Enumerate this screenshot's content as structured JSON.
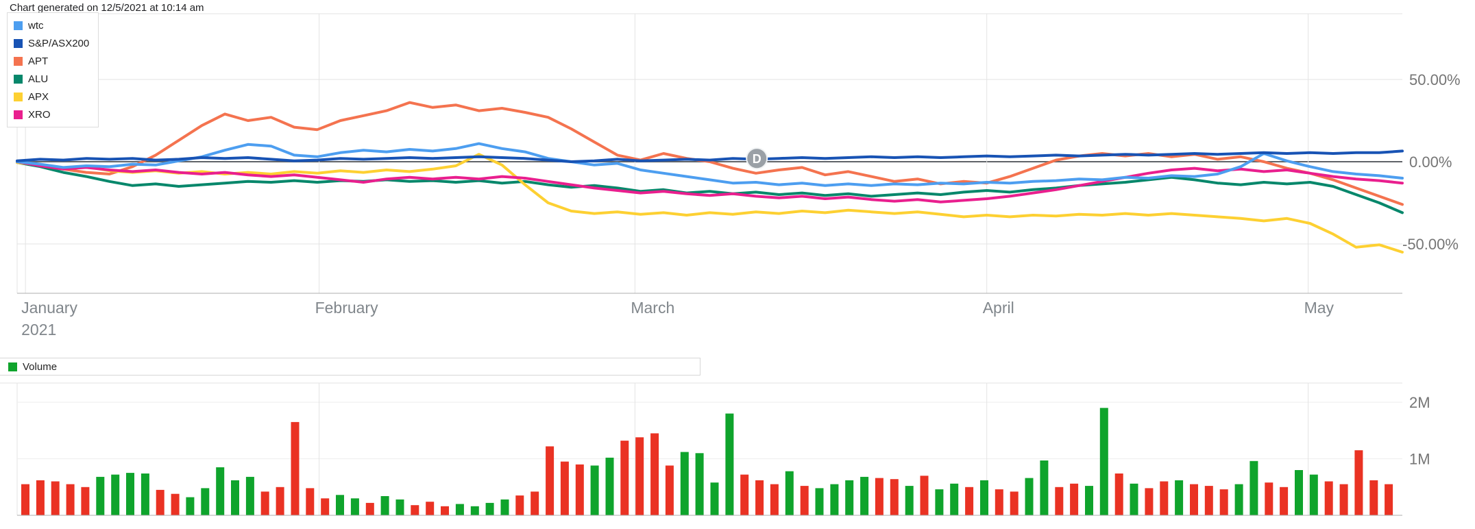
{
  "header": {
    "generated_note": "Chart generated on 12/5/2021 at 10:14 am"
  },
  "colors": {
    "grid": "#e3e3e3",
    "zero_line": "#5f6368",
    "axis_line": "#adadad",
    "tick_label": "#757575",
    "month_label": "#80868b"
  },
  "chart_data": [
    {
      "type": "line",
      "title": "",
      "ylim": [
        -80,
        90
      ],
      "yticks": [
        {
          "v": 50,
          "label": "50.00%"
        },
        {
          "v": 0,
          "label": "0.00%"
        },
        {
          "v": -50,
          "label": "-50.00%"
        }
      ],
      "x_axis": {
        "ticks": [
          {
            "f": 0.006,
            "label": "January",
            "sublabel": "2021"
          },
          {
            "f": 0.218,
            "label": "February"
          },
          {
            "f": 0.446,
            "label": "March"
          },
          {
            "f": 0.7,
            "label": "April"
          },
          {
            "f": 0.932,
            "label": "May"
          }
        ]
      },
      "marker": {
        "label": "D",
        "f": 0.534,
        "value": 2,
        "color": "#9aa0a6"
      },
      "series": [
        {
          "name": "wtc",
          "color": "#4d9ef0",
          "values": [
            0,
            -1.5,
            -3.5,
            -2.5,
            -3,
            -1.5,
            -2,
            0.5,
            3,
            7,
            10.5,
            9.5,
            4,
            3,
            5.5,
            7,
            6,
            7.5,
            6.5,
            8,
            11,
            8,
            6,
            2,
            0,
            -2,
            -1,
            -5,
            -7,
            -9,
            -11,
            -13,
            -12.5,
            -14,
            -13,
            -14.5,
            -13.5,
            -14.5,
            -13.5,
            -14,
            -13,
            -13.5,
            -12.5,
            -13,
            -12,
            -11.5,
            -10.5,
            -11,
            -9.5,
            -10,
            -8.5,
            -9,
            -7.5,
            -3,
            5,
            0.5,
            -3,
            -6,
            -7.5,
            -8.5,
            -10
          ]
        },
        {
          "name": "S&P/ASX200",
          "color": "#1853b4",
          "values": [
            0.5,
            1.5,
            1,
            2,
            1.5,
            2,
            1,
            1.5,
            2.5,
            2,
            2.5,
            1.5,
            0.5,
            1,
            2,
            1.5,
            2,
            2.5,
            2,
            2.5,
            3,
            2.5,
            2,
            1,
            0,
            0.5,
            1.5,
            0.5,
            1,
            1.5,
            1,
            2,
            1.5,
            2,
            2.5,
            2,
            2.5,
            3,
            2.5,
            3,
            2.5,
            3,
            3.5,
            3,
            3.5,
            4,
            3.5,
            4,
            4.5,
            4,
            4.5,
            5,
            4.5,
            5,
            5.5,
            5,
            5.5,
            5,
            5.5,
            5.5,
            6.5
          ]
        },
        {
          "name": "APT",
          "color": "#f4734f",
          "values": [
            0,
            -2,
            -4.5,
            -6.5,
            -7.5,
            -3,
            4,
            13,
            22,
            29,
            25,
            27,
            21,
            19.5,
            25,
            28,
            31,
            36,
            33,
            34.5,
            31,
            32.5,
            30,
            27,
            20,
            12,
            4,
            1,
            5,
            2,
            0,
            -4,
            -7,
            -5,
            -3.5,
            -8,
            -6,
            -9,
            -12,
            -10.5,
            -13.5,
            -12,
            -13,
            -9,
            -4,
            1,
            3.5,
            5,
            3.5,
            5,
            3,
            4.5,
            1.5,
            3,
            0,
            -4,
            -7,
            -11,
            -16,
            -21,
            -26
          ]
        },
        {
          "name": "ALU",
          "color": "#07876b",
          "values": [
            -0.5,
            -3,
            -6.5,
            -9,
            -12,
            -14.5,
            -13.5,
            -15,
            -14,
            -13,
            -12,
            -12.5,
            -11.5,
            -12.5,
            -11.5,
            -12,
            -11,
            -12,
            -11.5,
            -12.5,
            -11.5,
            -13,
            -12,
            -14,
            -15.5,
            -14.5,
            -16,
            -18,
            -17,
            -19,
            -18,
            -19.5,
            -18.5,
            -20,
            -19,
            -20.5,
            -19.5,
            -21,
            -20,
            -19,
            -20,
            -18.5,
            -17.5,
            -18.5,
            -17,
            -16,
            -14.5,
            -13.5,
            -12.5,
            -11,
            -9.5,
            -11,
            -13,
            -14,
            -12.5,
            -13.5,
            -12.5,
            -15,
            -20,
            -25,
            -31
          ]
        },
        {
          "name": "APX",
          "color": "#fdd032",
          "values": [
            -0.5,
            -2,
            -4.5,
            -3,
            -5.5,
            -6.5,
            -5.5,
            -7,
            -6,
            -7.5,
            -6.5,
            -7.5,
            -6,
            -7,
            -5.5,
            -6.5,
            -5,
            -6,
            -4.5,
            -2.5,
            4.5,
            -2,
            -14,
            -25,
            -30,
            -31.5,
            -30.5,
            -32,
            -31,
            -32.5,
            -31,
            -32,
            -30.5,
            -31.5,
            -30,
            -31,
            -29.5,
            -30.5,
            -31.5,
            -30.5,
            -32,
            -33.5,
            -32.5,
            -33.5,
            -32.5,
            -33,
            -32,
            -32.5,
            -31.5,
            -32.5,
            -31.5,
            -32.5,
            -33.5,
            -34.5,
            -36,
            -34.5,
            -37.5,
            -44,
            -52,
            -50.5,
            -55
          ]
        },
        {
          "name": "XRO",
          "color": "#e91f8e",
          "values": [
            0,
            -2.5,
            -4.5,
            -3.5,
            -5,
            -6,
            -5,
            -6.5,
            -7.5,
            -6.5,
            -8,
            -9,
            -8,
            -9.5,
            -11,
            -12.5,
            -10.5,
            -9.5,
            -10.5,
            -9.5,
            -10.5,
            -9,
            -10,
            -12,
            -14,
            -16,
            -17.5,
            -19,
            -18,
            -19.5,
            -20.5,
            -19.5,
            -21,
            -22,
            -21,
            -22.5,
            -21.5,
            -23,
            -24,
            -23,
            -24.5,
            -23.5,
            -22.5,
            -21,
            -19,
            -17,
            -14.5,
            -12,
            -9.5,
            -7,
            -5,
            -4,
            -5.5,
            -4.5,
            -6,
            -5,
            -7,
            -9,
            -10.5,
            -11.5,
            -13
          ]
        }
      ]
    },
    {
      "type": "bar",
      "name": "Volume",
      "unit": "M",
      "ylim": [
        0,
        2.34
      ],
      "yticks": [
        {
          "v": 2,
          "label": "2M"
        },
        {
          "v": 1,
          "label": "1M"
        }
      ],
      "up_color": "#0fa42c",
      "down_color": "#ea3223",
      "values": [
        0.55,
        0.62,
        0.6,
        0.55,
        0.5,
        0.68,
        0.72,
        0.75,
        0.74,
        0.45,
        0.38,
        0.32,
        0.48,
        0.85,
        0.62,
        0.68,
        0.42,
        0.5,
        1.65,
        0.48,
        0.3,
        0.36,
        0.3,
        0.22,
        0.34,
        0.28,
        0.18,
        0.24,
        0.16,
        0.2,
        0.16,
        0.22,
        0.28,
        0.35,
        0.42,
        1.22,
        0.95,
        0.9,
        0.88,
        1.02,
        1.32,
        1.38,
        1.45,
        0.88,
        1.12,
        1.1,
        0.58,
        1.8,
        0.72,
        0.62,
        0.55,
        0.78,
        0.52,
        0.48,
        0.55,
        0.62,
        0.68,
        0.66,
        0.64,
        0.52,
        0.7,
        0.46,
        0.56,
        0.5,
        0.62,
        0.46,
        0.42,
        0.66,
        0.97,
        0.5,
        0.56,
        0.52,
        1.9,
        0.74,
        0.56,
        0.48,
        0.6,
        0.62,
        0.55,
        0.52,
        0.46,
        0.55,
        0.96,
        0.58,
        0.5,
        0.8,
        0.72,
        0.6,
        0.55,
        1.15,
        0.62,
        0.55
      ],
      "colors": "rrrrrggggrrgggggrrrrrggrggrrrggggrrrrrggrrrrggggrrrgrggggrrgrggrgrrggrrggrgrrgrrrggrrggrrrrr"
    }
  ]
}
